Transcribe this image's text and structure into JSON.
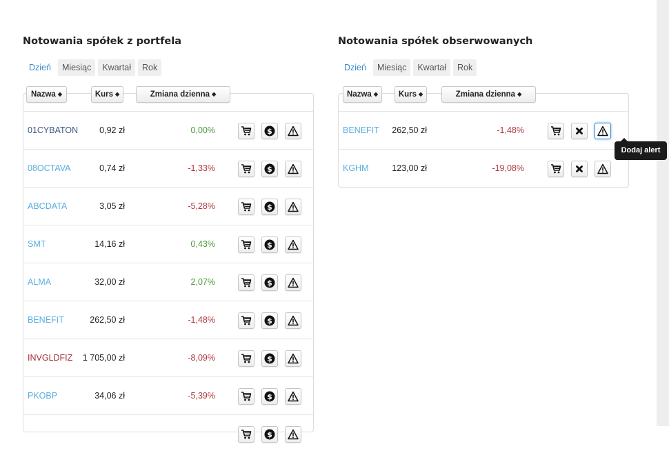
{
  "portfolio": {
    "title": "Notowania spółek z portfela",
    "tabs": [
      "Dzień",
      "Miesiąc",
      "Kwartał",
      "Rok"
    ],
    "headers": {
      "name": "Nazwa",
      "price": "Kurs",
      "change": "Zmiana dzienna"
    },
    "sort_glyph": "◆",
    "rows": [
      {
        "name": "01CYBATON",
        "price": "0,92 zł",
        "change": "0,00%",
        "name_style": "dark",
        "change_style": "pos"
      },
      {
        "name": "08OCTAVA",
        "price": "0,74 zł",
        "change": "-1,33%",
        "name_style": "link",
        "change_style": "neg"
      },
      {
        "name": "ABCDATA",
        "price": "3,05 zł",
        "change": "-5,28%",
        "name_style": "link",
        "change_style": "neg"
      },
      {
        "name": "SMT",
        "price": "14,16 zł",
        "change": "0,43%",
        "name_style": "link",
        "change_style": "pos"
      },
      {
        "name": "ALMA",
        "price": "32,00 zł",
        "change": "2,07%",
        "name_style": "link",
        "change_style": "pos"
      },
      {
        "name": "BENEFIT",
        "price": "262,50 zł",
        "change": "-1,48%",
        "name_style": "link",
        "change_style": "neg"
      },
      {
        "name": "INVGLDFIZ",
        "price": "1 705,00 zł",
        "change": "-8,09%",
        "name_style": "red",
        "change_style": "neg"
      },
      {
        "name": "PKOBP",
        "price": "34,06 zł",
        "change": "-5,39%",
        "name_style": "link",
        "change_style": "neg"
      },
      {
        "name": "",
        "price": "",
        "change": "",
        "name_style": "link",
        "change_style": "neg"
      }
    ],
    "row_actions": [
      "cart-icon",
      "dollar-icon",
      "alert-icon"
    ]
  },
  "watched": {
    "title": "Notowania spółek obserwowanych",
    "tabs": [
      "Dzień",
      "Miesiąc",
      "Kwartał",
      "Rok"
    ],
    "headers": {
      "name": "Nazwa",
      "price": "Kurs",
      "change": "Zmiana dzienna"
    },
    "sort_glyph": "◆",
    "rows": [
      {
        "name": "BENEFIT",
        "price": "262,50 zł",
        "change": "-1,48%",
        "name_style": "link",
        "change_style": "neg"
      },
      {
        "name": "KGHM",
        "price": "123,00 zł",
        "change": "-19,08%",
        "name_style": "link",
        "change_style": "neg"
      }
    ],
    "row_actions": [
      "cart-icon",
      "remove-icon",
      "alert-icon"
    ]
  },
  "tooltip": {
    "text": "Dodaj alert"
  },
  "colors": {
    "link": "#5aaee0",
    "active_tab": "#3a89c9",
    "positive": "#4c9a3c",
    "negative": "#b03a40",
    "special_name": "#a3303a"
  }
}
